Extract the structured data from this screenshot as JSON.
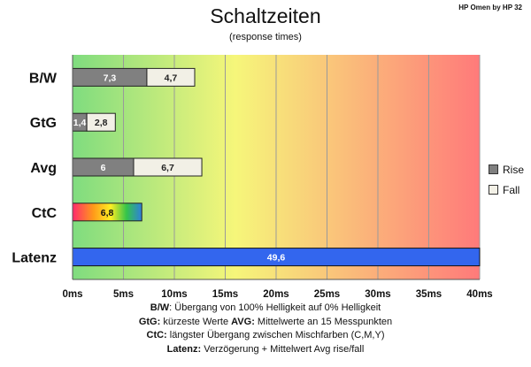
{
  "header": {
    "title": "Schaltzeiten",
    "subtitle": "(response times)",
    "corner_label": "HP Omen by HP 32"
  },
  "chart_data": {
    "type": "bar",
    "orientation": "horizontal",
    "stacked": true,
    "categories": [
      "B/W",
      "GtG",
      "Avg",
      "CtC",
      "Latenz"
    ],
    "series": [
      {
        "name": "Rise",
        "color": "#808080",
        "values": [
          7.3,
          1.4,
          6,
          null,
          null
        ],
        "labels": [
          "7,3",
          "1,4",
          "6",
          null,
          null
        ]
      },
      {
        "name": "Fall",
        "color": "#f2f0e6",
        "values": [
          4.7,
          2.8,
          6.7,
          null,
          null
        ],
        "labels": [
          "4,7",
          "2,8",
          "6,7",
          null,
          null
        ]
      }
    ],
    "ctc": {
      "value": 6.8,
      "label": "6,8"
    },
    "latency": {
      "value": 49.6,
      "label": "49,6",
      "color": "#3366ee"
    },
    "x_ticks": [
      "0ms",
      "5ms",
      "10ms",
      "15ms",
      "20ms",
      "25ms",
      "30ms",
      "35ms",
      "40ms"
    ],
    "xlim": [
      0,
      40
    ],
    "background_gradient": [
      "#7fdc7f",
      "#f6f67a",
      "#ff7a7a"
    ],
    "grid": true,
    "legend_position": "right"
  },
  "legend": {
    "rise": "Rise",
    "fall": "Fall"
  },
  "footnotes": [
    {
      "key": "B/W",
      "text": ":  Übergang von 100% Helligkeit auf 0% Helligkeit"
    },
    {
      "key": "GtG:",
      "text": " kürzeste  Werte",
      "key2": "AVG:",
      "text2": " Mittelwerte  an 15 Messpunkten"
    },
    {
      "key": "CtC:",
      "text": " längster Übergang  zwischen Mischfarben  (C,M,Y)"
    },
    {
      "key": "Latenz:",
      "text": " Verzögerung  + Mittelwert  Avg rise/fall"
    }
  ]
}
